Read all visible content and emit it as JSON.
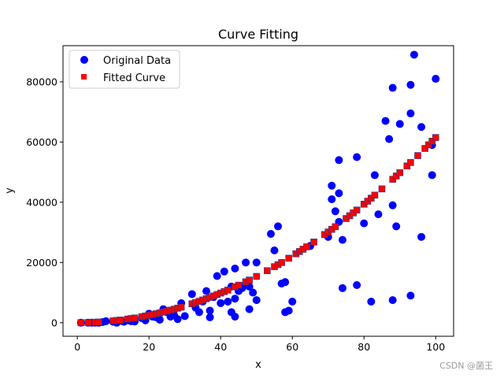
{
  "chart_data": {
    "type": "scatter",
    "title": "Curve Fitting",
    "xlabel": "x",
    "ylabel": "y",
    "xlim": [
      -4,
      105
    ],
    "ylim": [
      -4500,
      92000
    ],
    "xticks": [
      0,
      20,
      40,
      60,
      80,
      100
    ],
    "yticks": [
      0,
      20000,
      40000,
      60000,
      80000
    ],
    "grid": false,
    "legend_position": "top-left",
    "series": [
      {
        "name": "Original Data",
        "marker": "circle",
        "color": "#0000ff",
        "points": [
          [
            1,
            0
          ],
          [
            3,
            0
          ],
          [
            4,
            0
          ],
          [
            5,
            0
          ],
          [
            6,
            0
          ],
          [
            7,
            200
          ],
          [
            8,
            500
          ],
          [
            10,
            300
          ],
          [
            11,
            0
          ],
          [
            12,
            600
          ],
          [
            13,
            300
          ],
          [
            14,
            800
          ],
          [
            15,
            500
          ],
          [
            16,
            400
          ],
          [
            18,
            1500
          ],
          [
            19,
            800
          ],
          [
            20,
            3000
          ],
          [
            21,
            2000
          ],
          [
            22,
            1800
          ],
          [
            23,
            1000
          ],
          [
            24,
            4500
          ],
          [
            25,
            3500
          ],
          [
            26,
            2000
          ],
          [
            27,
            2500
          ],
          [
            28,
            1200
          ],
          [
            29,
            6500
          ],
          [
            30,
            2200
          ],
          [
            32,
            9500
          ],
          [
            33,
            5000
          ],
          [
            34,
            3500
          ],
          [
            35,
            7000
          ],
          [
            36,
            10500
          ],
          [
            37,
            4000
          ],
          [
            37,
            1800
          ],
          [
            38,
            8500
          ],
          [
            39,
            15500
          ],
          [
            40,
            6500
          ],
          [
            41,
            17000
          ],
          [
            42,
            7000
          ],
          [
            43,
            3500
          ],
          [
            43,
            12000
          ],
          [
            44,
            2000
          ],
          [
            44,
            8000
          ],
          [
            44,
            18000
          ],
          [
            45,
            10500
          ],
          [
            46,
            11500
          ],
          [
            47,
            13000
          ],
          [
            47,
            20000
          ],
          [
            48,
            4500
          ],
          [
            48,
            12000
          ],
          [
            49,
            10000
          ],
          [
            50,
            20000
          ],
          [
            50,
            7500
          ],
          [
            54,
            29500
          ],
          [
            55,
            24000
          ],
          [
            56,
            32000
          ],
          [
            57,
            13000
          ],
          [
            58,
            13500
          ],
          [
            58,
            3500
          ],
          [
            59,
            4000
          ],
          [
            60,
            7000
          ],
          [
            65,
            25500
          ],
          [
            70,
            28500
          ],
          [
            71,
            45500
          ],
          [
            71,
            41000
          ],
          [
            72,
            37000
          ],
          [
            73,
            54000
          ],
          [
            73,
            43000
          ],
          [
            73,
            33500
          ],
          [
            74,
            27500
          ],
          [
            74,
            11500
          ],
          [
            78,
            55000
          ],
          [
            78,
            12500
          ],
          [
            80,
            33000
          ],
          [
            82,
            7000
          ],
          [
            83,
            49000
          ],
          [
            84,
            36000
          ],
          [
            86,
            67000
          ],
          [
            87,
            61000
          ],
          [
            88,
            78000
          ],
          [
            88,
            39000
          ],
          [
            88,
            7500
          ],
          [
            89,
            32000
          ],
          [
            90,
            66000
          ],
          [
            93,
            69500
          ],
          [
            93,
            79000
          ],
          [
            93,
            9000
          ],
          [
            94,
            89000
          ],
          [
            96,
            65000
          ],
          [
            96,
            28500
          ],
          [
            99,
            59000
          ],
          [
            99,
            49000
          ],
          [
            100,
            81000
          ]
        ]
      },
      {
        "name": "Fitted Curve",
        "marker": "square",
        "color": "#ff0000",
        "x": [
          1,
          3,
          5,
          6,
          10,
          11,
          12,
          14,
          15,
          16,
          18,
          19,
          20,
          21,
          22,
          23,
          24,
          25,
          26,
          27,
          28,
          29,
          32,
          33,
          34,
          35,
          36,
          37,
          38,
          39,
          40,
          41,
          42,
          44,
          45,
          47,
          48,
          50,
          53,
          55,
          56,
          57,
          59,
          61,
          62,
          63,
          64,
          66,
          69,
          70,
          71,
          72,
          75,
          76,
          77,
          78,
          80,
          81,
          82,
          83,
          85,
          88,
          89,
          90,
          92,
          93,
          95,
          97,
          98,
          99,
          100
        ],
        "coefficient": 6.15
      }
    ]
  },
  "watermark": "CSDN @菌王"
}
